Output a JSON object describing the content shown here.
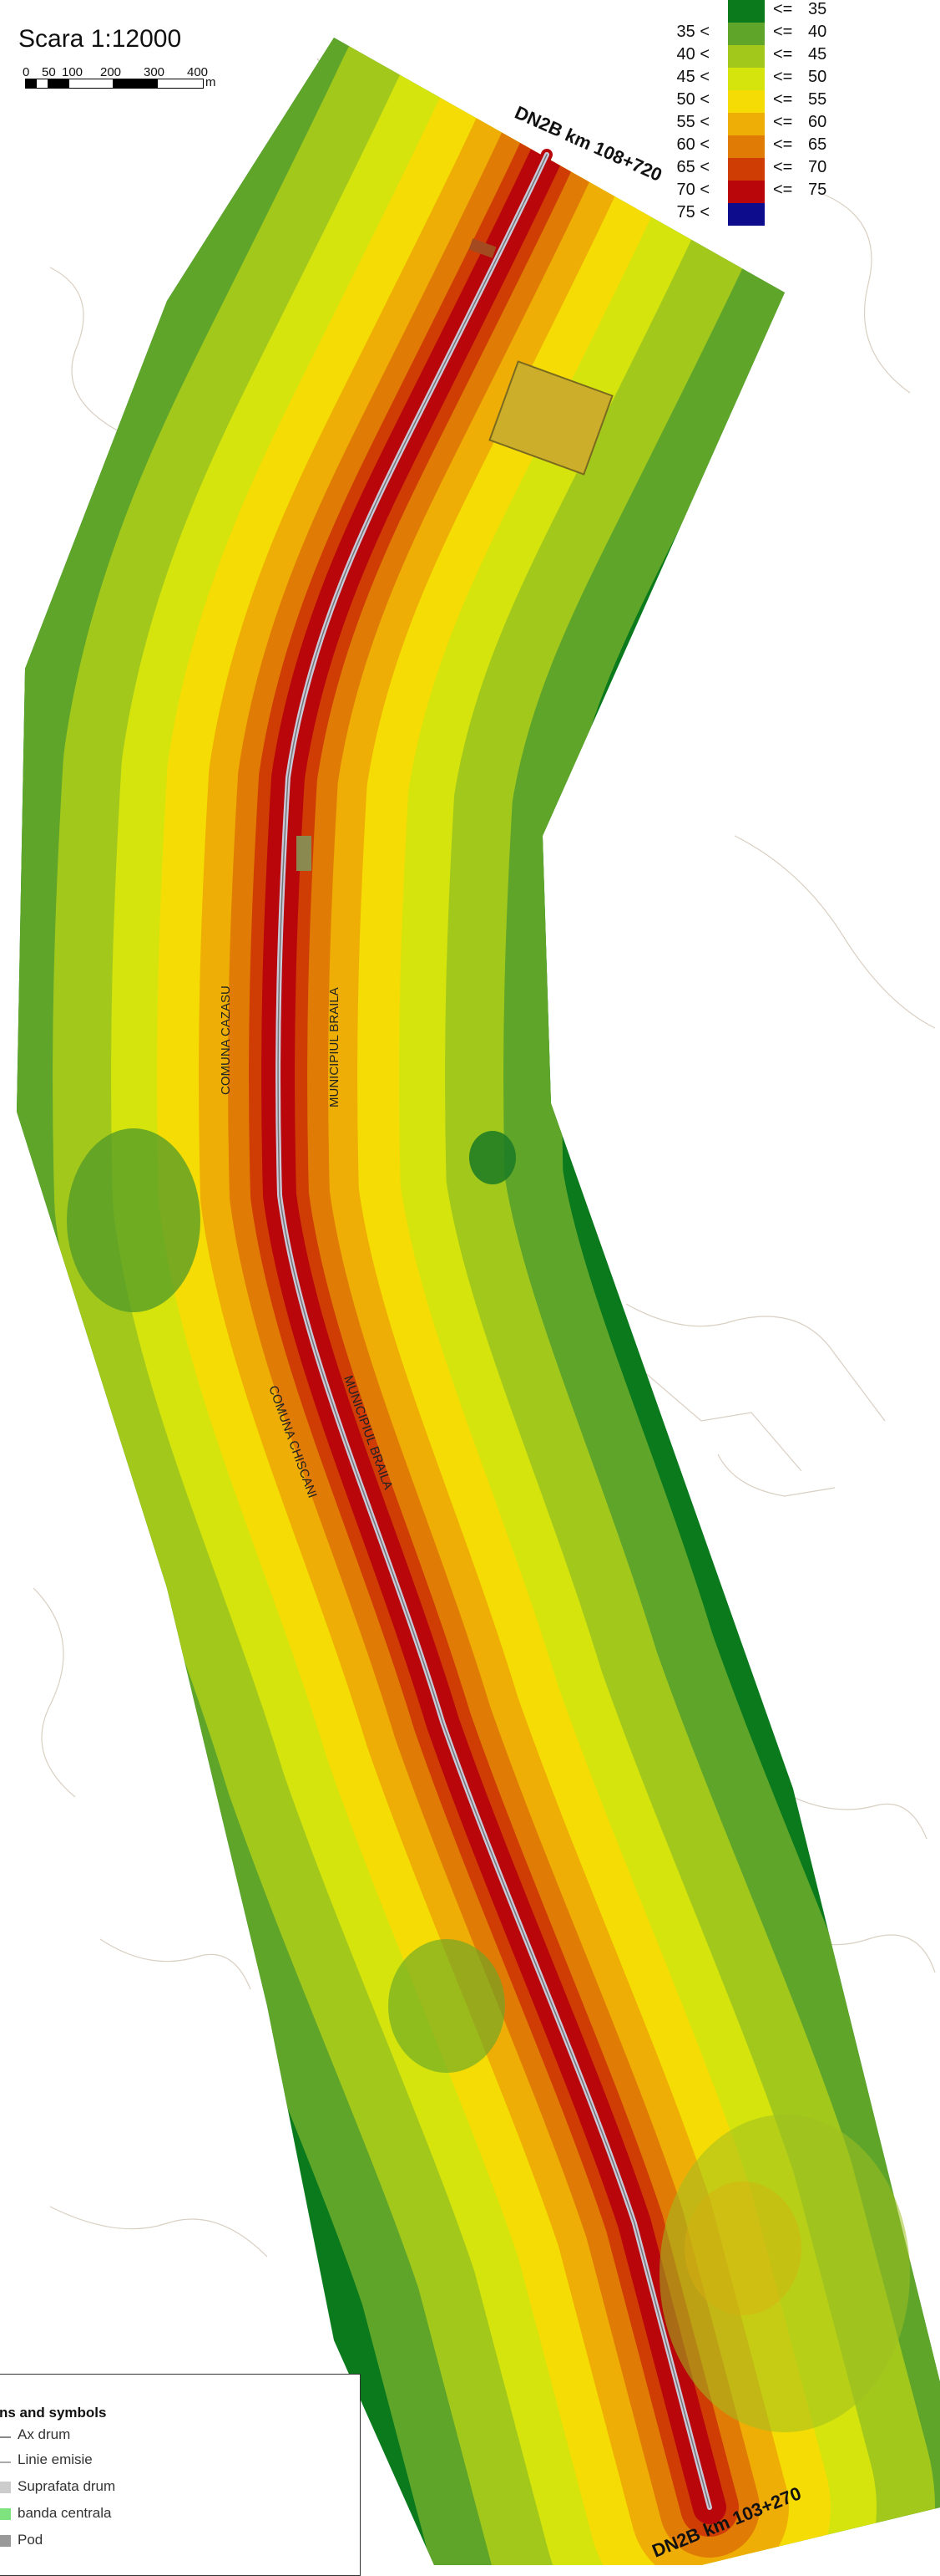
{
  "scale": {
    "title": "Scara 1:12000",
    "ticks": [
      "0",
      "50",
      "100",
      "200",
      "300",
      "400"
    ],
    "unit": "m"
  },
  "legend": {
    "rows": [
      {
        "lower": "",
        "upper": "35",
        "color": "#0a7a1c"
      },
      {
        "lower": "35 <",
        "upper": "40",
        "color": "#5fa52a"
      },
      {
        "lower": "40 <",
        "upper": "45",
        "color": "#a3c81c"
      },
      {
        "lower": "45 <",
        "upper": "50",
        "color": "#d4e40c"
      },
      {
        "lower": "50 <",
        "upper": "55",
        "color": "#f5dc05"
      },
      {
        "lower": "55 <",
        "upper": "60",
        "color": "#eeae05"
      },
      {
        "lower": "60 <",
        "upper": "65",
        "color": "#e07c05"
      },
      {
        "lower": "65 <",
        "upper": "70",
        "color": "#cf3d05"
      },
      {
        "lower": "70 <",
        "upper": "75",
        "color": "#b8060b"
      },
      {
        "lower": "75 <",
        "upper": "",
        "color": "#0c0c8c"
      }
    ],
    "operator": "<="
  },
  "map": {
    "km_start_label": "DN2B km 108+720",
    "km_end_label": "DN2B km 103+270",
    "area_labels": [
      "COMUNA CAZASU",
      "MUNICIPIUL BRAILA",
      "COMUNA CHISCANI",
      "MUNICIPIUL BRAILA"
    ]
  },
  "symbols": {
    "title": "ns and symbols",
    "items": [
      {
        "label": "Ax drum",
        "color": "#888888"
      },
      {
        "label": "Linie emisie",
        "color": "#aaaaaa"
      },
      {
        "label": "Suprafata drum",
        "color": "#cccccc"
      },
      {
        "label": "banda centrala",
        "color": "#7ee37e"
      },
      {
        "label": "Pod",
        "color": "#999999"
      }
    ]
  }
}
